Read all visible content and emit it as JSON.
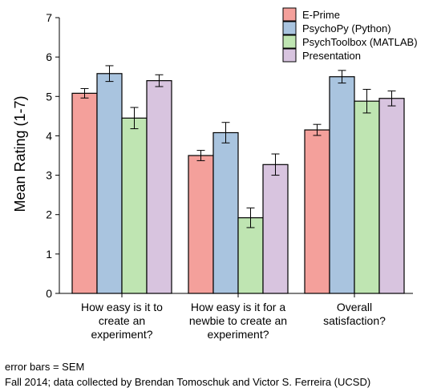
{
  "chart_data": {
    "type": "bar",
    "ylabel": "Mean Rating (1-7)",
    "xlabel": "",
    "ylim": [
      0,
      7
    ],
    "yticks": [
      0,
      1,
      2,
      3,
      4,
      5,
      6,
      7
    ],
    "grid": false,
    "legend_position": "top-right",
    "categories": [
      [
        "How easy is it to",
        "create an",
        "experiment?"
      ],
      [
        "How easy is it for a",
        "newbie to create an",
        "experiment?"
      ],
      [
        "Overall",
        "satisfaction?"
      ]
    ],
    "series": [
      {
        "name": "E-Prime",
        "color": "#f4a09b",
        "values": [
          5.08,
          3.5,
          4.15
        ],
        "sem": [
          0.12,
          0.13,
          0.14
        ]
      },
      {
        "name": "PsychoPy (Python)",
        "color": "#a9c4df",
        "values": [
          5.58,
          4.08,
          5.5
        ],
        "sem": [
          0.2,
          0.26,
          0.16
        ]
      },
      {
        "name": "PsychToolbox (MATLAB)",
        "color": "#bfe5b2",
        "values": [
          4.45,
          1.92,
          4.88
        ],
        "sem": [
          0.27,
          0.25,
          0.3
        ]
      },
      {
        "name": "Presentation",
        "color": "#d8c4df",
        "values": [
          5.4,
          3.27,
          4.95
        ],
        "sem": [
          0.15,
          0.27,
          0.19
        ]
      }
    ]
  },
  "captions": {
    "line1": "error bars = SEM",
    "line2": "Fall 2014; data collected by Brendan Tomoschuk and Victor S. Ferreira (UCSD)"
  }
}
